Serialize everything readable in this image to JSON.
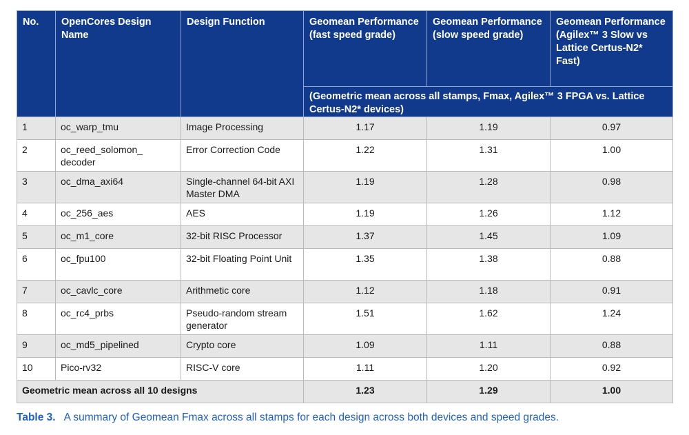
{
  "table": {
    "headers": {
      "no": "No.",
      "design_name": "OpenCores Design Name",
      "design_function": "Design Function",
      "perf_fast": "Geomean Performance (fast speed grade)",
      "perf_slow": "Geomean Performance (slow speed grade)",
      "perf_agilex": "Geomean Performance (Agilex™ 3 Slow vs Lattice Certus-N2* Fast)",
      "subheader": "(Geometric mean across all stamps, Fmax, Agilex™ 3 FPGA vs. Lattice Certus-N2* devices)"
    },
    "rows": [
      {
        "no": "1",
        "name": "oc_warp_tmu",
        "function": "Image Processing",
        "fast": "1.17",
        "slow": "1.19",
        "agilex": "0.97"
      },
      {
        "no": "2",
        "name": "oc_reed_solomon_ decoder",
        "function": "Error Correction Code",
        "fast": "1.22",
        "slow": "1.31",
        "agilex": "1.00"
      },
      {
        "no": "3",
        "name": "oc_dma_axi64",
        "function": "Single-channel 64-bit AXI Master DMA",
        "fast": "1.19",
        "slow": "1.28",
        "agilex": "0.98"
      },
      {
        "no": "4",
        "name": "oc_256_aes",
        "function": "AES",
        "fast": "1.19",
        "slow": "1.26",
        "agilex": "1.12"
      },
      {
        "no": "5",
        "name": "oc_m1_core",
        "function": "32-bit RISC Processor",
        "fast": "1.37",
        "slow": "1.45",
        "agilex": "1.09"
      },
      {
        "no": "6",
        "name": "oc_fpu100",
        "function": "32-bit Floating Point Unit",
        "fast": "1.35",
        "slow": "1.38",
        "agilex": "0.88"
      },
      {
        "no": "7",
        "name": "oc_cavlc_core",
        "function": "Arithmetic core",
        "fast": "1.12",
        "slow": "1.18",
        "agilex": "0.91"
      },
      {
        "no": "8",
        "name": "oc_rc4_prbs",
        "function": "Pseudo-random stream generator",
        "fast": "1.51",
        "slow": "1.62",
        "agilex": "1.24"
      },
      {
        "no": "9",
        "name": "oc_md5_pipelined",
        "function": "Crypto core",
        "fast": "1.09",
        "slow": "1.11",
        "agilex": "0.88"
      },
      {
        "no": "10",
        "name": "Pico-rv32",
        "function": "RISC-V core",
        "fast": "1.11",
        "slow": "1.20",
        "agilex": "0.92"
      }
    ],
    "footer": {
      "label": "Geometric mean across all 10 designs",
      "fast": "1.23",
      "slow": "1.29",
      "agilex": "1.00"
    }
  },
  "caption": {
    "label": "Table 3.",
    "text": "A summary of Geomean Fmax across all stamps for each design across both devices and speed grades."
  },
  "colors": {
    "header_bg": "#113a8c",
    "row_shade": "#e6e6e6",
    "caption_text": "#1f5fc6"
  }
}
